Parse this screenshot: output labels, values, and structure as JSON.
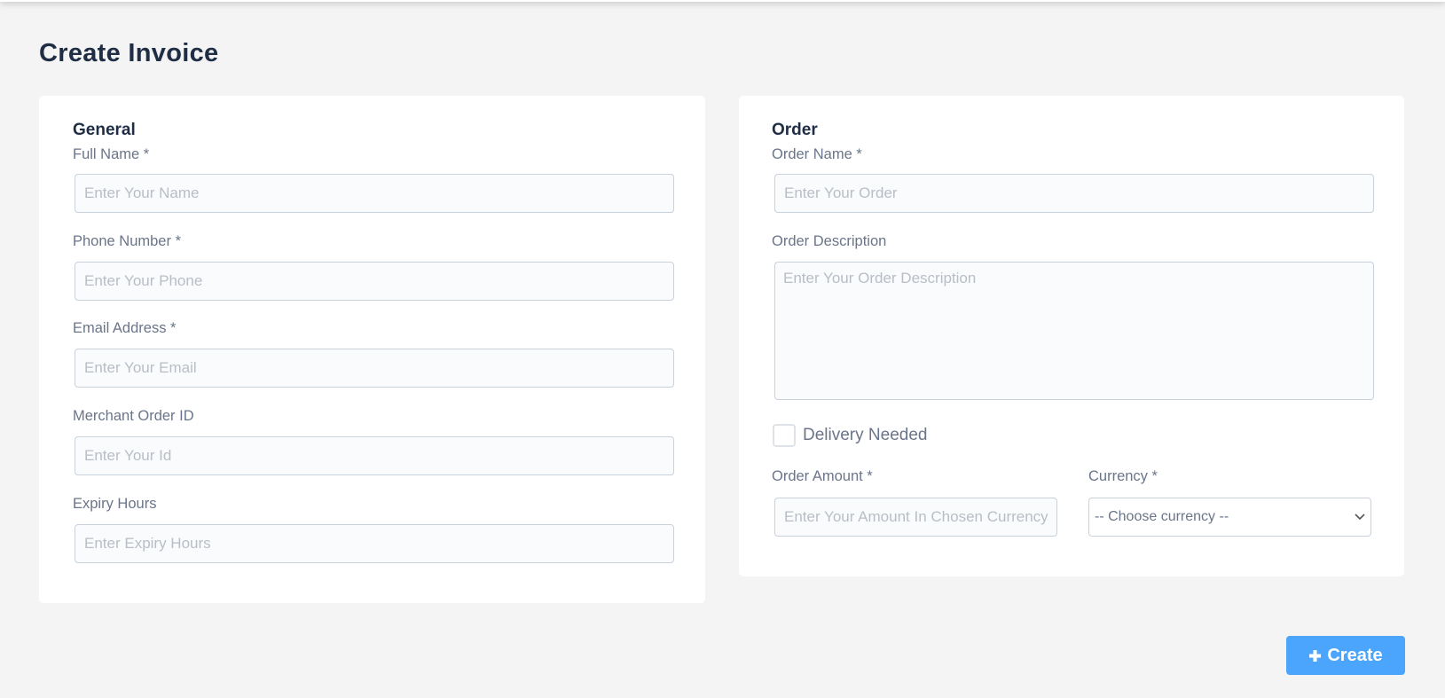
{
  "page_title": "Create Invoice",
  "general": {
    "heading": "General",
    "fields": [
      {
        "label": "Full Name *",
        "placeholder": "Enter Your Name"
      },
      {
        "label": "Phone Number *",
        "placeholder": "Enter Your Phone"
      },
      {
        "label": "Email Address *",
        "placeholder": "Enter Your Email"
      },
      {
        "label": "Merchant Order ID",
        "placeholder": "Enter Your Id"
      },
      {
        "label": "Expiry Hours",
        "placeholder": "Enter Expiry Hours"
      }
    ]
  },
  "order": {
    "heading": "Order",
    "name_label": "Order Name *",
    "name_placeholder": "Enter Your Order",
    "desc_label": "Order Description",
    "desc_placeholder": "Enter Your Order Description",
    "delivery_label": "Delivery Needed",
    "delivery_checked": false,
    "amount_label": "Order Amount *",
    "amount_placeholder": "Enter Your Amount In Chosen Currency",
    "currency_label": "Currency *",
    "currency_selected": "-- Choose currency --"
  },
  "create_button": {
    "icon": "plus-icon",
    "label": "Create",
    "color": "#4ba5fd"
  }
}
